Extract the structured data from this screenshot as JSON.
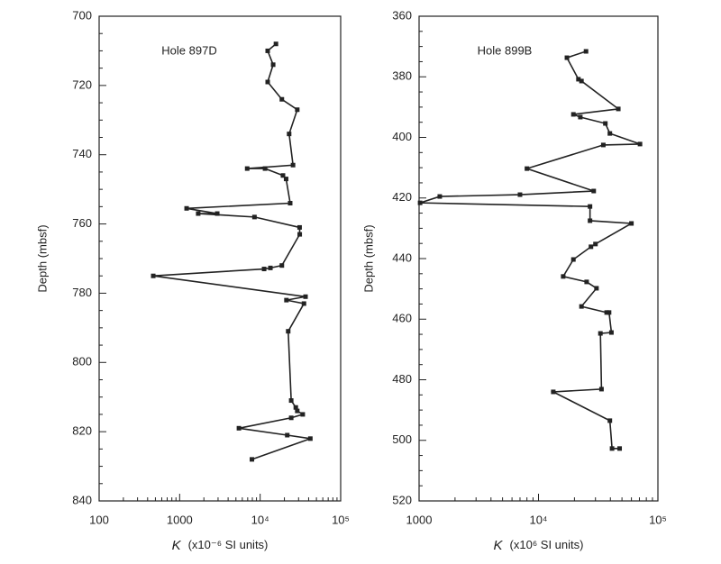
{
  "chart_data": [
    {
      "type": "line",
      "annotation": "Hole 897D",
      "ylabel": "Depth (mbsf)",
      "xlabel_symbol": "K",
      "xlabel": "(x10⁻⁶ SI units)",
      "xscale": "log",
      "yinverted": true,
      "color": "#222",
      "xlim": [
        100,
        100000
      ],
      "xticks": [
        100,
        1000,
        {
          "value": 10000,
          "label": "10⁴"
        },
        {
          "value": 100000,
          "label": "10⁵"
        }
      ],
      "ylim": [
        700,
        840
      ],
      "yticks": [
        700,
        720,
        740,
        760,
        780,
        800,
        820,
        840
      ],
      "x": [
        15700,
        12400,
        14500,
        12400,
        18600,
        28900,
        22900,
        25600,
        6900,
        11500,
        19200,
        21000,
        23600,
        1220,
        2930,
        1700,
        8500,
        30900,
        31000,
        18600,
        13400,
        11200,
        470,
        36600,
        21200,
        35000,
        22300,
        24300,
        27700,
        28900,
        33800,
        24300,
        5450,
        21700,
        42000,
        7900
      ],
      "values": [
        708,
        710,
        714,
        719,
        724,
        727,
        734,
        743,
        744,
        744,
        746,
        747,
        754,
        755.5,
        757,
        757,
        758,
        761,
        763,
        772,
        772.7,
        773,
        775,
        781,
        782,
        783,
        791,
        811,
        813,
        814,
        815,
        816,
        819,
        821,
        822,
        828
      ]
    },
    {
      "type": "line",
      "annotation": "Hole 899B",
      "ylabel": "Depth (mbsf)",
      "xlabel_symbol": "K",
      "xlabel": "(x10⁶ SI units)",
      "xscale": "log",
      "yinverted": true,
      "color": "#222",
      "xlim": [
        1000,
        100000
      ],
      "xticks": [
        1000,
        {
          "value": 10000,
          "label": "10⁴"
        },
        {
          "value": 100000,
          "label": "10⁵"
        }
      ],
      "ylim": [
        360,
        520
      ],
      "yticks": [
        360,
        380,
        400,
        420,
        440,
        460,
        480,
        500,
        520
      ],
      "x": [
        25000,
        17300,
        21600,
        22900,
        46600,
        19600,
        22400,
        36300,
        39600,
        70800,
        34900,
        8000,
        29000,
        7000,
        1490,
        1020,
        27000,
        27000,
        60000,
        30000,
        27500,
        19600,
        16100,
        25300,
        30600,
        22900,
        37200,
        39000,
        40800,
        33000,
        33700,
        13300,
        39600,
        41300,
        47800
      ],
      "values": [
        371.6,
        373.7,
        380.8,
        381.4,
        390.6,
        392.4,
        393.3,
        395.4,
        398.7,
        402.2,
        402.5,
        410.3,
        417.7,
        418.9,
        419.5,
        421.6,
        422.8,
        427.5,
        428.4,
        435.2,
        436.1,
        440.3,
        445.9,
        447.7,
        449.8,
        455.8,
        457.8,
        457.8,
        464.4,
        464.7,
        483.1,
        484,
        493.5,
        502.7,
        502.7
      ]
    }
  ]
}
